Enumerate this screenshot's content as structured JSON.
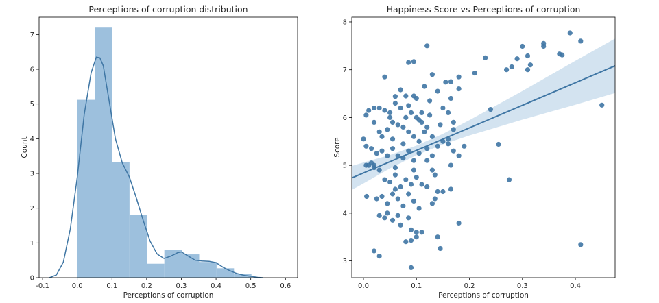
{
  "chart_data": [
    {
      "type": "bar",
      "subtype": "histogram-with-kde",
      "title": "Perceptions of corruption distribution",
      "xlabel": "Perceptions of corruption",
      "ylabel": "Count",
      "xlim": [
        -0.11,
        0.635
      ],
      "ylim": [
        0,
        7.5
      ],
      "xticks": [
        "-0.1",
        "0.0",
        "0.1",
        "0.2",
        "0.3",
        "0.4",
        "0.5",
        "0.6"
      ],
      "yticks": [
        "0",
        "1",
        "2",
        "3",
        "4",
        "5",
        "6",
        "7"
      ],
      "grid": false,
      "bar_color": "#9dc0dd",
      "line_color": "#3f76a4",
      "bins": [
        {
          "x0": 0.0,
          "x1": 0.0502,
          "value": 5.12
        },
        {
          "x0": 0.0502,
          "x1": 0.1004,
          "value": 7.2
        },
        {
          "x0": 0.1004,
          "x1": 0.1506,
          "value": 3.33
        },
        {
          "x0": 0.1506,
          "x1": 0.2008,
          "value": 1.8
        },
        {
          "x0": 0.2008,
          "x1": 0.251,
          "value": 0.4
        },
        {
          "x0": 0.251,
          "x1": 0.3012,
          "value": 0.8
        },
        {
          "x0": 0.3012,
          "x1": 0.3514,
          "value": 0.67
        },
        {
          "x0": 0.3514,
          "x1": 0.4016,
          "value": 0.45
        },
        {
          "x0": 0.4016,
          "x1": 0.4518,
          "value": 0.27
        },
        {
          "x0": 0.4518,
          "x1": 0.502,
          "value": 0.1
        }
      ],
      "kde": {
        "x": [
          -0.08,
          -0.06,
          -0.04,
          -0.02,
          0.0,
          0.02,
          0.04,
          0.055,
          0.065,
          0.075,
          0.09,
          0.11,
          0.13,
          0.15,
          0.17,
          0.19,
          0.21,
          0.23,
          0.25,
          0.27,
          0.29,
          0.3,
          0.32,
          0.34,
          0.36,
          0.38,
          0.4,
          0.42,
          0.44,
          0.46,
          0.48,
          0.5,
          0.52,
          0.535
        ],
        "y": [
          0.0,
          0.08,
          0.45,
          1.4,
          2.9,
          4.7,
          5.9,
          6.35,
          6.33,
          6.1,
          5.2,
          4.0,
          3.3,
          2.9,
          2.3,
          1.65,
          1.05,
          0.68,
          0.55,
          0.62,
          0.72,
          0.74,
          0.62,
          0.5,
          0.48,
          0.47,
          0.43,
          0.3,
          0.2,
          0.12,
          0.07,
          0.04,
          0.01,
          0.0
        ]
      }
    },
    {
      "type": "scatter",
      "subtype": "regression",
      "title": "Happiness Score vs Perceptions of corruption",
      "xlabel": "Perceptions of corruption",
      "ylabel": "Score",
      "xlim": [
        -0.022,
        0.475
      ],
      "ylim": [
        2.65,
        8.1
      ],
      "xticks": [
        "0.0",
        "0.1",
        "0.2",
        "0.3",
        "0.4"
      ],
      "yticks": [
        "3",
        "4",
        "5",
        "6",
        "7",
        "8"
      ],
      "grid": false,
      "point_color": "#3f76a4",
      "line_color": "#3f76a4",
      "band_color": "#9dc0dd",
      "regression": {
        "intercept": 4.84,
        "slope": 4.72
      },
      "band": {
        "x": [
          -0.022,
          0.0,
          0.05,
          0.1,
          0.15,
          0.2,
          0.25,
          0.3,
          0.35,
          0.4,
          0.475
        ],
        "half_width": [
          0.25,
          0.22,
          0.14,
          0.1,
          0.11,
          0.16,
          0.23,
          0.3,
          0.38,
          0.46,
          0.57
        ]
      },
      "points": [
        [
          0.39,
          7.77
        ],
        [
          0.41,
          7.6
        ],
        [
          0.34,
          7.55
        ],
        [
          0.34,
          7.49
        ],
        [
          0.37,
          7.33
        ],
        [
          0.375,
          7.31
        ],
        [
          0.3,
          7.49
        ],
        [
          0.31,
          7.29
        ],
        [
          0.29,
          7.23
        ],
        [
          0.315,
          7.1
        ],
        [
          0.31,
          7.0
        ],
        [
          0.27,
          7.0
        ],
        [
          0.28,
          7.06
        ],
        [
          0.23,
          7.25
        ],
        [
          0.21,
          6.93
        ],
        [
          0.45,
          6.26
        ],
        [
          0.24,
          6.17
        ],
        [
          0.12,
          7.5
        ],
        [
          0.085,
          7.15
        ],
        [
          0.095,
          7.17
        ],
        [
          0.18,
          6.85
        ],
        [
          0.165,
          6.75
        ],
        [
          0.13,
          6.9
        ],
        [
          0.155,
          6.74
        ],
        [
          0.18,
          6.6
        ],
        [
          0.14,
          6.55
        ],
        [
          0.125,
          6.35
        ],
        [
          0.165,
          6.4
        ],
        [
          0.15,
          6.2
        ],
        [
          0.16,
          6.1
        ],
        [
          0.17,
          5.9
        ],
        [
          0.17,
          5.75
        ],
        [
          0.15,
          5.5
        ],
        [
          0.19,
          5.4
        ],
        [
          0.17,
          5.3
        ],
        [
          0.18,
          5.2
        ],
        [
          0.165,
          5.0
        ],
        [
          0.275,
          4.7
        ],
        [
          0.255,
          5.44
        ],
        [
          0.41,
          3.34
        ],
        [
          0.18,
          3.79
        ],
        [
          0.145,
          3.26
        ],
        [
          0.14,
          3.5
        ],
        [
          0.09,
          2.86
        ],
        [
          0.03,
          3.1
        ],
        [
          0.02,
          3.21
        ],
        [
          0.005,
          5.0
        ],
        [
          0.0,
          5.55
        ],
        [
          0.005,
          6.05
        ],
        [
          0.01,
          6.15
        ],
        [
          0.02,
          6.2
        ],
        [
          0.04,
          6.85
        ],
        [
          0.06,
          6.44
        ],
        [
          0.07,
          6.58
        ],
        [
          0.08,
          6.45
        ],
        [
          0.095,
          6.45
        ],
        [
          0.1,
          6.4
        ],
        [
          0.03,
          6.2
        ],
        [
          0.04,
          6.15
        ],
        [
          0.05,
          6.1
        ],
        [
          0.06,
          6.3
        ],
        [
          0.07,
          6.2
        ],
        [
          0.08,
          6.0
        ],
        [
          0.09,
          6.1
        ],
        [
          0.1,
          6.0
        ],
        [
          0.11,
          5.9
        ],
        [
          0.12,
          5.8
        ],
        [
          0.02,
          5.9
        ],
        [
          0.03,
          5.7
        ],
        [
          0.045,
          5.75
        ],
        [
          0.055,
          5.9
        ],
        [
          0.065,
          5.85
        ],
        [
          0.075,
          5.8
        ],
        [
          0.085,
          5.7
        ],
        [
          0.095,
          5.6
        ],
        [
          0.105,
          5.5
        ],
        [
          0.115,
          5.7
        ],
        [
          0.13,
          5.6
        ],
        [
          0.14,
          5.4
        ],
        [
          0.005,
          5.4
        ],
        [
          0.015,
          5.35
        ],
        [
          0.025,
          5.25
        ],
        [
          0.035,
          5.3
        ],
        [
          0.045,
          5.2
        ],
        [
          0.055,
          5.35
        ],
        [
          0.065,
          5.2
        ],
        [
          0.075,
          5.15
        ],
        [
          0.085,
          5.3
        ],
        [
          0.095,
          5.1
        ],
        [
          0.105,
          5.25
        ],
        [
          0.12,
          5.1
        ],
        [
          0.13,
          5.2
        ],
        [
          0.01,
          5.0
        ],
        [
          0.02,
          4.95
        ],
        [
          0.03,
          4.9
        ],
        [
          0.04,
          4.7
        ],
        [
          0.05,
          4.65
        ],
        [
          0.06,
          4.8
        ],
        [
          0.07,
          4.55
        ],
        [
          0.08,
          4.7
        ],
        [
          0.09,
          4.6
        ],
        [
          0.1,
          4.75
        ],
        [
          0.11,
          4.6
        ],
        [
          0.12,
          4.55
        ],
        [
          0.13,
          4.9
        ],
        [
          0.14,
          4.45
        ],
        [
          0.025,
          4.3
        ],
        [
          0.035,
          4.35
        ],
        [
          0.045,
          4.2
        ],
        [
          0.055,
          4.4
        ],
        [
          0.065,
          4.3
        ],
        [
          0.075,
          4.15
        ],
        [
          0.085,
          4.4
        ],
        [
          0.095,
          4.25
        ],
        [
          0.105,
          4.1
        ],
        [
          0.03,
          3.95
        ],
        [
          0.04,
          3.9
        ],
        [
          0.055,
          3.85
        ],
        [
          0.07,
          3.75
        ],
        [
          0.085,
          3.9
        ],
        [
          0.09,
          3.65
        ],
        [
          0.1,
          3.6
        ],
        [
          0.11,
          3.6
        ],
        [
          0.08,
          3.4
        ],
        [
          0.09,
          3.43
        ],
        [
          0.1,
          3.5
        ],
        [
          0.006,
          4.35
        ],
        [
          0.06,
          4.5
        ],
        [
          0.13,
          4.2
        ],
        [
          0.15,
          4.45
        ],
        [
          0.135,
          4.3
        ],
        [
          0.165,
          4.5
        ],
        [
          0.12,
          5.35
        ],
        [
          0.145,
          5.85
        ],
        [
          0.16,
          5.55
        ],
        [
          0.105,
          5.95
        ],
        [
          0.115,
          6.65
        ],
        [
          0.02,
          5.0
        ],
        [
          0.035,
          5.6
        ],
        [
          0.075,
          5.45
        ],
        [
          0.06,
          4.95
        ],
        [
          0.05,
          6.0
        ],
        [
          0.16,
          5.45
        ],
        [
          0.11,
          6.1
        ],
        [
          0.125,
          6.05
        ],
        [
          0.085,
          6.25
        ],
        [
          0.015,
          5.05
        ],
        [
          0.055,
          5.55
        ],
        [
          0.095,
          4.9
        ],
        [
          0.135,
          4.8
        ],
        [
          0.065,
          3.95
        ],
        [
          0.045,
          4.0
        ]
      ]
    }
  ]
}
